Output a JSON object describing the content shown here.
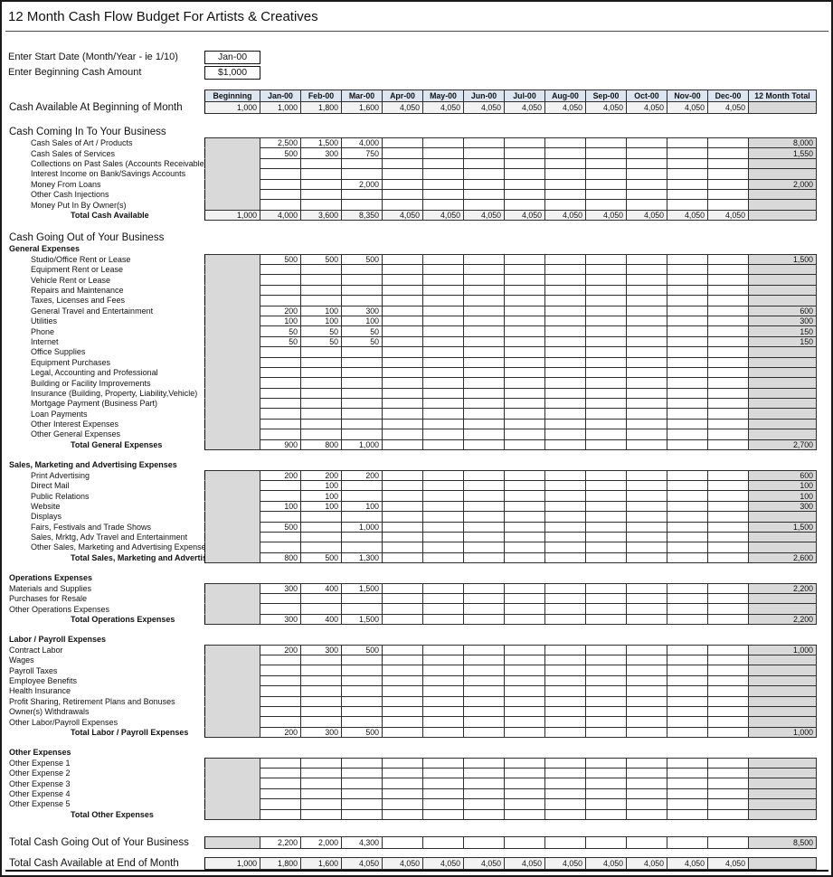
{
  "title": "12 Month Cash Flow Budget For Artists & Creatives",
  "form": {
    "start_date_label": "Enter Start Date (Month/Year - ie 1/10)",
    "start_date_value": "Jan-00",
    "beginning_cash_label": "Enter Beginning Cash Amount",
    "beginning_cash_value": "$1,000"
  },
  "columns": [
    "Beginning",
    "Jan-00",
    "Feb-00",
    "Mar-00",
    "Apr-00",
    "May-00",
    "Jun-00",
    "Jul-00",
    "Aug-00",
    "Sep-00",
    "Oct-00",
    "Nov-00",
    "Dec-00",
    "12 Month Total"
  ],
  "colors": {
    "header_bg": "#dce6f1",
    "block_gray": "#d9d9d9",
    "light_gray": "#f2f2f2",
    "grid_line": "#2e2e2e"
  },
  "rows": [
    {
      "t": "head"
    },
    {
      "t": "grand",
      "label": "Cash Available At Beginning of Month",
      "beg": "1,000",
      "mbg": "light",
      "m": [
        "1,000",
        "1,800",
        "1,600",
        "4,050",
        "4,050",
        "4,050",
        "4,050",
        "4,050",
        "4,050",
        "4,050",
        "4,050",
        "4,050"
      ],
      "tot": ""
    },
    {
      "t": "gap",
      "h": 13
    },
    {
      "t": "bighead",
      "label": "Cash Coming In To Your Business"
    },
    {
      "t": "item",
      "ind": 1,
      "label": "Cash Sales of Art / Products",
      "m": [
        "2,500",
        "1,500",
        "4,000",
        "",
        "",
        "",
        "",
        "",
        "",
        "",
        "",
        ""
      ],
      "tot": "8,000"
    },
    {
      "t": "item",
      "ind": 1,
      "label": "Cash Sales of Services",
      "m": [
        "500",
        "300",
        "750",
        "",
        "",
        "",
        "",
        "",
        "",
        "",
        "",
        ""
      ],
      "tot": "1,550"
    },
    {
      "t": "item",
      "ind": 1,
      "label": "Collections on Past Sales (Accounts Receivable)"
    },
    {
      "t": "item",
      "ind": 1,
      "label": "Interest Income on Bank/Savings Accounts"
    },
    {
      "t": "item",
      "ind": 1,
      "label": "Money From Loans",
      "m": [
        "",
        "",
        "2,000",
        "",
        "",
        "",
        "",
        "",
        "",
        "",
        "",
        ""
      ],
      "tot": "2,000"
    },
    {
      "t": "item",
      "ind": 1,
      "label": "Other Cash Injections"
    },
    {
      "t": "item",
      "ind": 1,
      "label": "Money Put In By Owner(s)"
    },
    {
      "t": "total",
      "ind": 2,
      "label": "Total Cash Available",
      "beg": "1,000",
      "mbg": "light",
      "m": [
        "4,000",
        "3,600",
        "8,350",
        "4,050",
        "4,050",
        "4,050",
        "4,050",
        "4,050",
        "4,050",
        "4,050",
        "4,050",
        "4,050"
      ],
      "tot": ""
    },
    {
      "t": "gap",
      "h": 12
    },
    {
      "t": "bighead",
      "label": "Cash Going Out of Your Business"
    },
    {
      "t": "subhead",
      "label": "General Expenses"
    },
    {
      "t": "item",
      "ind": 1,
      "label": "Studio/Office Rent or Lease",
      "m": [
        "500",
        "500",
        "500",
        "",
        "",
        "",
        "",
        "",
        "",
        "",
        "",
        ""
      ],
      "tot": "1,500"
    },
    {
      "t": "item",
      "ind": 1,
      "label": "Equipment Rent or Lease"
    },
    {
      "t": "item",
      "ind": 1,
      "label": "Vehicle Rent or Lease"
    },
    {
      "t": "item",
      "ind": 1,
      "label": "Repairs and Maintenance"
    },
    {
      "t": "item",
      "ind": 1,
      "label": "Taxes, Licenses and Fees"
    },
    {
      "t": "item",
      "ind": 1,
      "label": "General Travel and Entertainment",
      "m": [
        "200",
        "100",
        "300",
        "",
        "",
        "",
        "",
        "",
        "",
        "",
        "",
        ""
      ],
      "tot": "600"
    },
    {
      "t": "item",
      "ind": 1,
      "label": "Utilities",
      "m": [
        "100",
        "100",
        "100",
        "",
        "",
        "",
        "",
        "",
        "",
        "",
        "",
        ""
      ],
      "tot": "300"
    },
    {
      "t": "item",
      "ind": 1,
      "label": "Phone",
      "m": [
        "50",
        "50",
        "50",
        "",
        "",
        "",
        "",
        "",
        "",
        "",
        "",
        ""
      ],
      "tot": "150"
    },
    {
      "t": "item",
      "ind": 1,
      "label": "Internet",
      "m": [
        "50",
        "50",
        "50",
        "",
        "",
        "",
        "",
        "",
        "",
        "",
        "",
        ""
      ],
      "tot": "150"
    },
    {
      "t": "item",
      "ind": 1,
      "label": "Office Supplies"
    },
    {
      "t": "item",
      "ind": 1,
      "label": "Equipment Purchases"
    },
    {
      "t": "item",
      "ind": 1,
      "label": "Legal, Accounting and Professional"
    },
    {
      "t": "item",
      "ind": 1,
      "label": "Building or Facility Improvements"
    },
    {
      "t": "item",
      "ind": 1,
      "label": "Insurance (Building, Property, Liability,Vehicle)"
    },
    {
      "t": "item",
      "ind": 1,
      "label": "Mortgage Payment (Business Part)"
    },
    {
      "t": "item",
      "ind": 1,
      "label": "Loan Payments"
    },
    {
      "t": "item",
      "ind": 1,
      "label": "Other Interest Expenses"
    },
    {
      "t": "item",
      "ind": 1,
      "label": "Other General Expenses"
    },
    {
      "t": "total",
      "ind": 2,
      "label": "Total General Expenses",
      "m": [
        "900",
        "800",
        "1,000",
        "",
        "",
        "",
        "",
        "",
        "",
        "",
        "",
        ""
      ],
      "tot": "2,700"
    },
    {
      "t": "gap",
      "h": 10
    },
    {
      "t": "subhead",
      "label": "Sales, Marketing and Advertising Expenses"
    },
    {
      "t": "item",
      "ind": 1,
      "label": "Print Advertising",
      "m": [
        "200",
        "200",
        "200",
        "",
        "",
        "",
        "",
        "",
        "",
        "",
        "",
        ""
      ],
      "tot": "600"
    },
    {
      "t": "item",
      "ind": 1,
      "label": "Direct Mail",
      "m": [
        "",
        "100",
        "",
        "",
        "",
        "",
        "",
        "",
        "",
        "",
        "",
        ""
      ],
      "tot": "100"
    },
    {
      "t": "item",
      "ind": 1,
      "label": "Public Relations",
      "m": [
        "",
        "100",
        "",
        "",
        "",
        "",
        "",
        "",
        "",
        "",
        "",
        ""
      ],
      "tot": "100"
    },
    {
      "t": "item",
      "ind": 1,
      "label": "Website",
      "m": [
        "100",
        "100",
        "100",
        "",
        "",
        "",
        "",
        "",
        "",
        "",
        "",
        ""
      ],
      "tot": "300"
    },
    {
      "t": "item",
      "ind": 1,
      "label": "Displays"
    },
    {
      "t": "item",
      "ind": 1,
      "label": "Fairs, Festivals and Trade Shows",
      "m": [
        "500",
        "",
        "1,000",
        "",
        "",
        "",
        "",
        "",
        "",
        "",
        "",
        ""
      ],
      "tot": "1,500"
    },
    {
      "t": "item",
      "ind": 1,
      "label": "Sales, Mrktg, Adv Travel and Entertainment"
    },
    {
      "t": "item",
      "ind": 1,
      "label": "Other Sales, Marketing and Advertising Expenses"
    },
    {
      "t": "total",
      "ind": 2,
      "label": "Total Sales, Marketing and Advertising Expenses",
      "m": [
        "800",
        "500",
        "1,300",
        "",
        "",
        "",
        "",
        "",
        "",
        "",
        "",
        ""
      ],
      "tot": "2,600"
    },
    {
      "t": "gap",
      "h": 10
    },
    {
      "t": "subhead",
      "label": "Operations Expenses"
    },
    {
      "t": "item",
      "ind": 0,
      "label": "Materials and Supplies",
      "m": [
        "300",
        "400",
        "1,500",
        "",
        "",
        "",
        "",
        "",
        "",
        "",
        "",
        ""
      ],
      "tot": "2,200"
    },
    {
      "t": "item",
      "ind": 0,
      "label": "Purchases for Resale"
    },
    {
      "t": "item",
      "ind": 0,
      "label": "Other Operations Expenses"
    },
    {
      "t": "total",
      "ind": 2,
      "label": "Total Operations Expenses",
      "m": [
        "300",
        "400",
        "1,500",
        "",
        "",
        "",
        "",
        "",
        "",
        "",
        "",
        ""
      ],
      "tot": "2,200"
    },
    {
      "t": "gap",
      "h": 10
    },
    {
      "t": "subhead",
      "label": "Labor / Payroll Expenses"
    },
    {
      "t": "item",
      "ind": 0,
      "label": "Contract Labor",
      "m": [
        "200",
        "300",
        "500",
        "",
        "",
        "",
        "",
        "",
        "",
        "",
        "",
        ""
      ],
      "tot": "1,000"
    },
    {
      "t": "item",
      "ind": 0,
      "label": "Wages"
    },
    {
      "t": "item",
      "ind": 0,
      "label": "Payroll Taxes"
    },
    {
      "t": "item",
      "ind": 0,
      "label": "Employee Benefits"
    },
    {
      "t": "item",
      "ind": 0,
      "label": "Health Insurance"
    },
    {
      "t": "item",
      "ind": 0,
      "label": "Profit Sharing, Retirement Plans and Bonuses"
    },
    {
      "t": "item",
      "ind": 0,
      "label": "Owner(s) Withdrawals"
    },
    {
      "t": "item",
      "ind": 0,
      "label": "Other Labor/Payroll Expenses"
    },
    {
      "t": "total",
      "ind": 2,
      "label": "Total Labor / Payroll Expenses",
      "m": [
        "200",
        "300",
        "500",
        "",
        "",
        "",
        "",
        "",
        "",
        "",
        "",
        ""
      ],
      "tot": "1,000"
    },
    {
      "t": "gap",
      "h": 10
    },
    {
      "t": "subhead",
      "label": "Other Expenses"
    },
    {
      "t": "item",
      "ind": 0,
      "label": "Other Expense 1"
    },
    {
      "t": "item",
      "ind": 0,
      "label": "Other Expense 2"
    },
    {
      "t": "item",
      "ind": 0,
      "label": "Other Expense 3"
    },
    {
      "t": "item",
      "ind": 0,
      "label": "Other Expense 4"
    },
    {
      "t": "item",
      "ind": 0,
      "label": "Other Expense 5"
    },
    {
      "t": "total",
      "ind": 2,
      "label": "Total Other Expenses"
    },
    {
      "t": "gap",
      "h": 18
    },
    {
      "t": "grand",
      "label": "Total Cash Going Out of Your Business",
      "m": [
        "2,200",
        "2,000",
        "4,300",
        "",
        "",
        "",
        "",
        "",
        "",
        "",
        "",
        ""
      ],
      "tot": "8,500"
    },
    {
      "t": "gap",
      "h": 9
    },
    {
      "t": "grand",
      "label": "Total Cash Available at End of Month",
      "beg": "1,000",
      "mbg": "light",
      "thick": true,
      "m": [
        "1,800",
        "1,600",
        "4,050",
        "4,050",
        "4,050",
        "4,050",
        "4,050",
        "4,050",
        "4,050",
        "4,050",
        "4,050",
        "4,050"
      ],
      "tot": ""
    }
  ]
}
